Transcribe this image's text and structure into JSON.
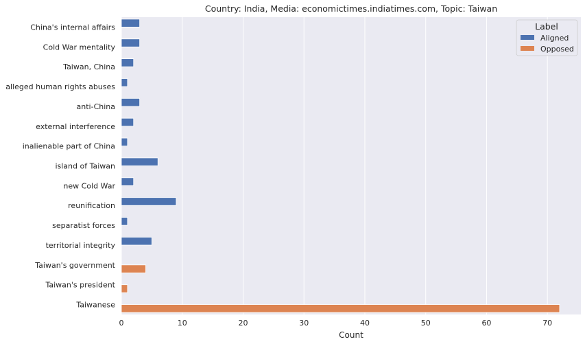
{
  "chart_data": {
    "type": "bar",
    "orientation": "horizontal",
    "title": "Country: India, Media: economictimes.indiatimes.com, Topic: Taiwan",
    "xlabel": "Count",
    "ylabel": "",
    "xlim": [
      0,
      75.5
    ],
    "xticks": [
      0,
      10,
      20,
      30,
      40,
      50,
      60,
      70
    ],
    "grid": true,
    "legend": {
      "title": "Label",
      "position": "top-right"
    },
    "categories": [
      "China's internal affairs",
      "Cold War mentality",
      "Taiwan, China",
      "alleged human rights abuses",
      "anti-China",
      "external interference",
      "inalienable part of China",
      "island of Taiwan",
      "new Cold War",
      "reunification",
      "separatist forces",
      "territorial integrity",
      "Taiwan's government",
      "Taiwan's president",
      "Taiwanese"
    ],
    "series": [
      {
        "name": "Aligned",
        "color": "#4c72b0",
        "values": [
          3,
          3,
          2,
          1,
          3,
          2,
          1,
          6,
          2,
          9,
          1,
          5,
          null,
          null,
          null
        ]
      },
      {
        "name": "Opposed",
        "color": "#dd8452",
        "values": [
          null,
          null,
          null,
          null,
          null,
          null,
          null,
          null,
          null,
          null,
          null,
          null,
          4,
          1,
          72
        ]
      }
    ]
  }
}
